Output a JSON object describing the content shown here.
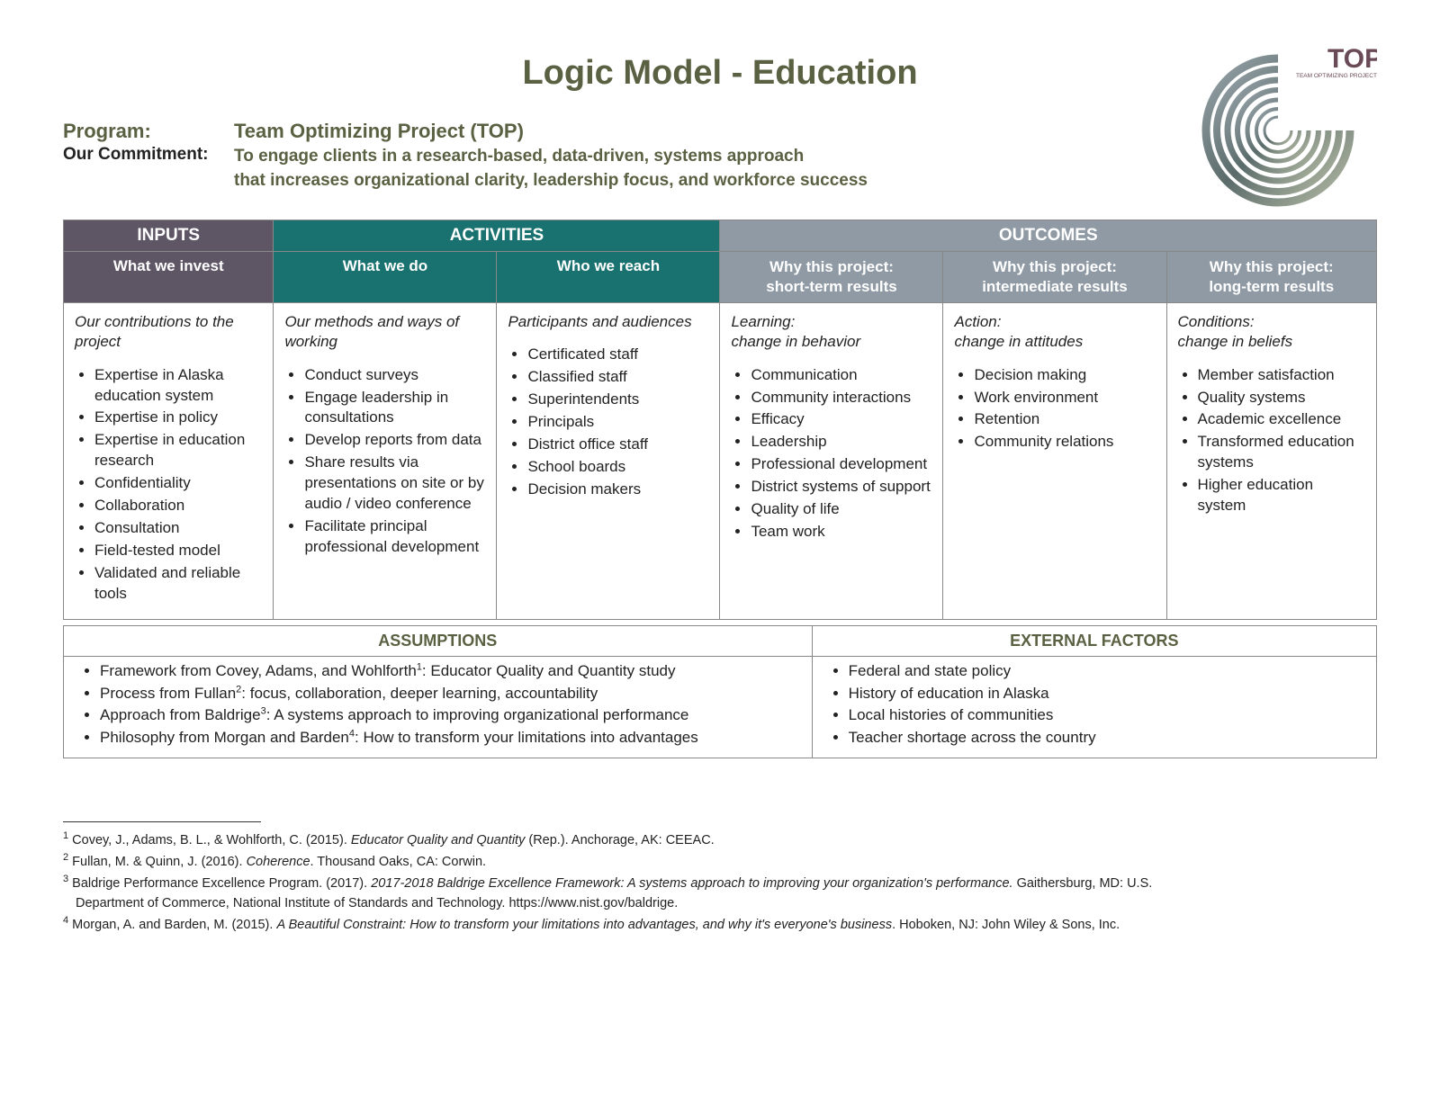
{
  "title": "Logic Model - Education",
  "program": {
    "label": "Program:",
    "value": "Team Optimizing Project (TOP)"
  },
  "commitment": {
    "label": "Our Commitment:",
    "line1": "To engage clients in a research-based, data-driven, systems approach",
    "line2": "that increases organizational clarity, leadership focus, and workforce success"
  },
  "logo": {
    "top_text": "TOP",
    "tagline": "TEAM OPTIMIZING PROJECT",
    "arc_color1": "#6a7178",
    "arc_color2": "#a8b0a0",
    "top_color": "#6a4a56"
  },
  "headers": {
    "inputs": "INPUTS",
    "activities": "ACTIVITIES",
    "outcomes": "OUTCOMES"
  },
  "subheaders": {
    "invest": "What we invest",
    "do": "What we do",
    "reach": "Who we reach",
    "short": "Why this project:\nshort-term results",
    "inter": "Why this project:\nintermediate results",
    "long": "Why this project:\nlong-term results"
  },
  "intros": {
    "invest": "Our contributions to the project",
    "do": "Our methods and ways of working",
    "reach": "Participants and audiences",
    "short": "Learning:\nchange in behavior",
    "inter": "Action:\nchange in attitudes",
    "long": "Conditions:\nchange in beliefs"
  },
  "cols": {
    "invest": [
      "Expertise in Alaska education system",
      "Expertise in policy",
      "Expertise in education research",
      "Confidentiality",
      "Collaboration",
      "Consultation",
      "Field-tested model",
      "Validated and reliable tools"
    ],
    "do": [
      "Conduct surveys",
      "Engage leadership in consultations",
      "Develop reports from data",
      "Share results via presentations on site or by audio / video conference",
      "Facilitate principal professional development"
    ],
    "reach": [
      "Certificated staff",
      "Classified staff",
      "Superintendents",
      "Principals",
      "District office staff",
      "School boards",
      "Decision makers"
    ],
    "short": [
      "Communication",
      "Community interactions",
      "Efficacy",
      "Leadership",
      "Professional development",
      "District systems of support",
      "Quality of life",
      "Team work"
    ],
    "inter": [
      "Decision making",
      "Work environment",
      "Retention",
      "Community relations"
    ],
    "long": [
      "Member satisfaction",
      "Quality systems",
      "Academic excellence",
      "Transformed education systems",
      "Higher education system"
    ]
  },
  "bottom": {
    "assumptions_hdr": "ASSUMPTIONS",
    "external_hdr": "EXTERNAL FACTORS",
    "assumptions": [
      {
        "pre": "Framework from Covey, Adams, and Wohlforth",
        "sup": "1",
        "post": ": Educator Quality and Quantity study"
      },
      {
        "pre": "Process from Fullan",
        "sup": "2",
        "post": ": focus, collaboration, deeper learning, accountability"
      },
      {
        "pre": "Approach from Baldrige",
        "sup": "3",
        "post": ": A systems approach to improving organizational performance"
      },
      {
        "pre": "Philosophy from Morgan and Barden",
        "sup": "4",
        "post": ": How to transform your limitations into advantages"
      }
    ],
    "external": [
      "Federal and state policy",
      "History of education in Alaska",
      "Local histories of communities",
      "Teacher shortage across the country"
    ]
  },
  "footnotes": {
    "f1": {
      "sup": "1",
      "pre": " Covey, J., Adams, B. L., & Wohlforth, C. (2015). ",
      "it": "Educator Quality and Quantity ",
      "post": "(Rep.). Anchorage, AK: CEEAC."
    },
    "f2": {
      "sup": "2",
      "pre": " Fullan, M. & Quinn, J. (2016). ",
      "it": "Coherence",
      "post": ". Thousand Oaks, CA: Corwin."
    },
    "f3": {
      "sup": "3",
      "pre": " Baldrige Performance Excellence Program. (2017). ",
      "it": "2017-2018 Baldrige Excellence Framework: A systems approach to improving your organization's performance. ",
      "post": "Gaithersburg, MD: U.S."
    },
    "f3b": "Department of Commerce, National Institute of Standards and Technology. https://www.nist.gov/baldrige.",
    "f4": {
      "sup": "4",
      "pre": " Morgan, A. and Barden, M. (2015). ",
      "it": "A Beautiful Constraint: How to transform your limitations into advantages, and why it's everyone's business",
      "post": ". Hoboken, NJ: John Wiley & Sons, Inc."
    }
  },
  "colors": {
    "olive": "#5a6142",
    "purple_gray": "#5e5565",
    "teal": "#1a7270",
    "blue_gray": "#8f9aa5"
  }
}
